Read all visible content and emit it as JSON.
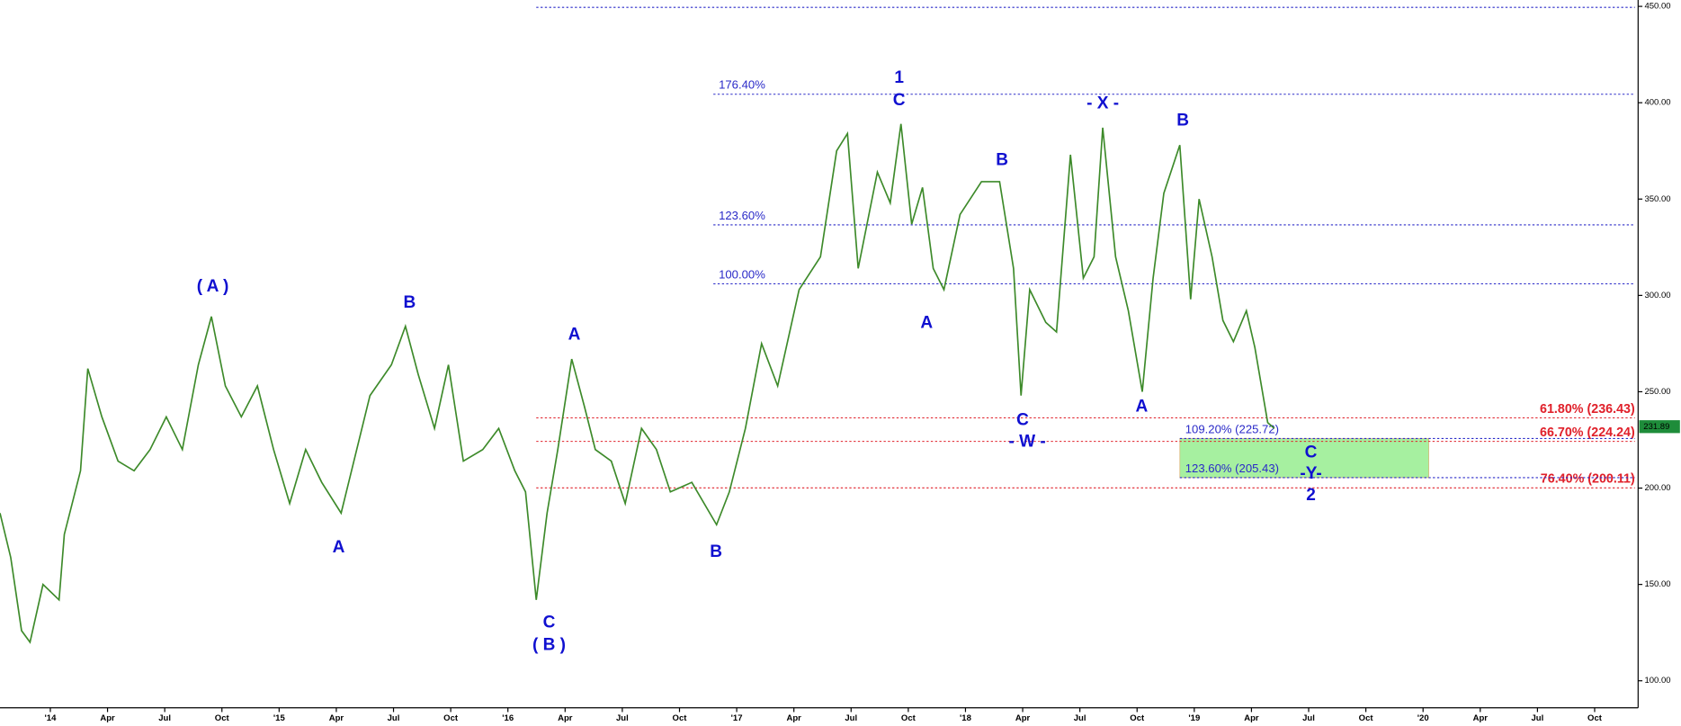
{
  "chart_data": {
    "type": "line",
    "xlim": [
      2013.78,
      2020.94
    ],
    "ylim": [
      86,
      453.3
    ],
    "xticks": [
      {
        "value": 2014,
        "label": "'14"
      },
      {
        "value": 2014.25,
        "label": "Apr"
      },
      {
        "value": 2014.5,
        "label": "Jul"
      },
      {
        "value": 2014.75,
        "label": "Oct"
      },
      {
        "value": 2015,
        "label": "'15"
      },
      {
        "value": 2015.25,
        "label": "Apr"
      },
      {
        "value": 2015.5,
        "label": "Jul"
      },
      {
        "value": 2015.75,
        "label": "Oct"
      },
      {
        "value": 2016,
        "label": "'16"
      },
      {
        "value": 2016.25,
        "label": "Apr"
      },
      {
        "value": 2016.5,
        "label": "Jul"
      },
      {
        "value": 2016.75,
        "label": "Oct"
      },
      {
        "value": 2017,
        "label": "'17"
      },
      {
        "value": 2017.25,
        "label": "Apr"
      },
      {
        "value": 2017.5,
        "label": "Jul"
      },
      {
        "value": 2017.75,
        "label": "Oct"
      },
      {
        "value": 2018,
        "label": "'18"
      },
      {
        "value": 2018.25,
        "label": "Apr"
      },
      {
        "value": 2018.5,
        "label": "Jul"
      },
      {
        "value": 2018.75,
        "label": "Oct"
      },
      {
        "value": 2019,
        "label": "'19"
      },
      {
        "value": 2019.25,
        "label": "Apr"
      },
      {
        "value": 2019.5,
        "label": "Jul"
      },
      {
        "value": 2019.75,
        "label": "Oct"
      },
      {
        "value": 2020,
        "label": "'20"
      },
      {
        "value": 2020.25,
        "label": "Apr"
      },
      {
        "value": 2020.5,
        "label": "Jul"
      },
      {
        "value": 2020.75,
        "label": "Oct"
      }
    ],
    "yticks": [
      {
        "value": 100,
        "label": "100.00"
      },
      {
        "value": 150,
        "label": "150.00"
      },
      {
        "value": 200,
        "label": "200.00"
      },
      {
        "value": 250,
        "label": "250.00"
      },
      {
        "value": 300,
        "label": "300.00"
      },
      {
        "value": 350,
        "label": "350.00"
      },
      {
        "value": 400,
        "label": "400.00"
      },
      {
        "value": 450,
        "label": "450.00"
      }
    ],
    "series": [
      {
        "color": "#3d8a2a",
        "x": [
          2013.78,
          2013.827,
          2013.874,
          2013.911,
          2013.968,
          2014.038,
          2014.061,
          2014.132,
          2014.164,
          2014.225,
          2014.296,
          2014.366,
          2014.436,
          2014.507,
          2014.577,
          2014.647,
          2014.704,
          2014.765,
          2014.835,
          2014.905,
          2014.976,
          2015.046,
          2015.116,
          2015.186,
          2015.271,
          2015.327,
          2015.397,
          2015.491,
          2015.552,
          2015.608,
          2015.679,
          2015.74,
          2015.805,
          2015.89,
          2015.96,
          2016.03,
          2016.077,
          2016.124,
          2016.171,
          2016.218,
          2016.279,
          2016.335,
          2016.382,
          2016.452,
          2016.513,
          2016.584,
          2016.649,
          2016.71,
          2016.804,
          2016.912,
          2016.968,
          2017.038,
          2017.109,
          2017.179,
          2017.273,
          2017.366,
          2017.437,
          2017.484,
          2017.531,
          2017.615,
          2017.671,
          2017.718,
          2017.765,
          2017.812,
          2017.859,
          2017.906,
          2017.976,
          2018.07,
          2018.149,
          2018.21,
          2018.243,
          2018.281,
          2018.351,
          2018.398,
          2018.459,
          2018.515,
          2018.562,
          2018.6,
          2018.656,
          2018.712,
          2018.773,
          2018.82,
          2018.867,
          2018.937,
          2018.984,
          2019.021,
          2019.078,
          2019.125,
          2019.171,
          2019.228,
          2019.265,
          2019.321,
          2019.35
        ],
        "values": [
          187,
          164,
          126,
          120,
          150,
          142,
          176,
          209,
          262,
          237,
          214,
          209,
          220,
          237,
          220,
          264,
          289,
          253,
          237,
          253,
          220,
          192,
          220,
          203,
          187,
          214,
          248,
          264,
          284,
          259,
          231,
          264,
          214,
          220,
          231,
          209,
          198,
          142,
          187,
          220,
          267,
          242,
          220,
          214,
          192,
          231,
          220,
          198,
          203,
          181,
          198,
          231,
          275,
          253,
          303,
          320,
          375,
          384,
          314,
          364,
          348,
          389,
          337,
          356,
          314,
          303,
          342,
          359,
          359,
          314,
          248,
          303,
          286,
          281,
          373,
          309,
          320,
          387,
          320,
          292,
          250,
          309,
          353,
          378,
          298,
          350,
          320,
          287,
          276,
          292,
          273,
          234,
          231
        ]
      }
    ],
    "last_price": 231.89,
    "levels": [
      {
        "value": 449.5,
        "color": "#2a2ac8",
        "start": 2016.124
      },
      {
        "value": 404.4,
        "label": "176.40%",
        "color": "#2a2ac8",
        "start": 2016.898
      },
      {
        "value": 336.6,
        "label": "123.60%",
        "color": "#2a2ac8",
        "start": 2016.898
      },
      {
        "value": 306,
        "label": "100.00%",
        "color": "#2a2ac8",
        "start": 2016.898
      },
      {
        "value": 236.43,
        "label": "61.80% (236.43)",
        "color": "#e0202a",
        "start": 2016.124,
        "right": true
      },
      {
        "value": 224.24,
        "label": "66.70% (224.24)",
        "color": "#e0202a",
        "start": 2016.124,
        "right": true
      },
      {
        "value": 200.11,
        "label": "76.40% (200.11)",
        "color": "#e0202a",
        "start": 2016.124,
        "right": true
      },
      {
        "value": 225.72,
        "label": "109.20% (225.72)",
        "color": "#2a2ac8",
        "start": 2018.937
      },
      {
        "value": 205.43,
        "label": "123.60% (205.43)",
        "color": "#2a2ac8",
        "start": 2018.937
      }
    ],
    "zone": {
      "x": [
        2018.937,
        2020.025
      ],
      "y": [
        205.43,
        225.72
      ],
      "color": "#a6f0a0"
    },
    "annotations": [
      {
        "text": "( A )",
        "x": 2014.71,
        "y": 304.4
      },
      {
        "text": "B",
        "x": 2015.57,
        "y": 296
      },
      {
        "text": "A",
        "x": 2015.26,
        "y": 168.9
      },
      {
        "text": "A",
        "x": 2016.29,
        "y": 279.4
      },
      {
        "text": "C",
        "x": 2016.18,
        "y": 130
      },
      {
        "text": "( B )",
        "x": 2016.18,
        "y": 118.3
      },
      {
        "text": "B",
        "x": 2016.91,
        "y": 166.6
      },
      {
        "text": "1",
        "x": 2017.71,
        "y": 412.7
      },
      {
        "text": "C",
        "x": 2017.71,
        "y": 401
      },
      {
        "text": "A",
        "x": 2017.83,
        "y": 285.5
      },
      {
        "text": "B",
        "x": 2018.16,
        "y": 370
      },
      {
        "text": "C",
        "x": 2018.25,
        "y": 235
      },
      {
        "text": "- W -",
        "x": 2018.27,
        "y": 223.9
      },
      {
        "text": "- X -",
        "x": 2018.6,
        "y": 399.4
      },
      {
        "text": "A",
        "x": 2018.77,
        "y": 242
      },
      {
        "text": "B",
        "x": 2018.95,
        "y": 390.5
      },
      {
        "text": "C",
        "x": 2019.51,
        "y": 218.3
      },
      {
        "text": "-Y-",
        "x": 2019.51,
        "y": 207.2
      },
      {
        "text": "2",
        "x": 2019.51,
        "y": 196.1
      }
    ]
  }
}
